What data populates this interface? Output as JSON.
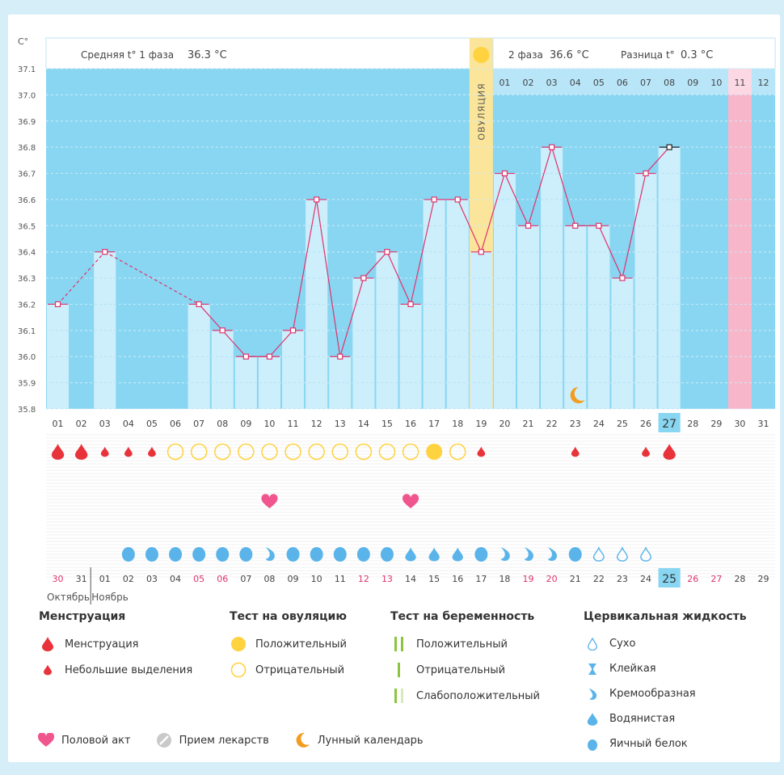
{
  "header": {
    "phase1_label": "Средняя t° 1 фаза",
    "phase1_value": "36.3 °C",
    "phase2_label": "2 фаза",
    "phase2_value": "36.6 °C",
    "diff_label": "Разница t°",
    "diff_value": "0.3 °C",
    "ovulation_label": "ОВУЛЯЦИЯ"
  },
  "colors": {
    "bg_blue": "#88d6f2",
    "bar_light": "#cdeefb",
    "line": "#e0336c",
    "ovulation": "#fbe59a",
    "pink": "#f7b6c9",
    "menstruation": "#e8333a",
    "test_pos": "#ffd23f",
    "fluid": "#5ab4ea",
    "heart": "#f1558e",
    "moon": "#f39c1e"
  },
  "chart_data": {
    "type": "line",
    "y_axis_label": "C°",
    "ylim": [
      35.8,
      37.1
    ],
    "y_ticks": [
      "37.1",
      "37.0",
      "36.9",
      "36.8",
      "36.7",
      "36.6",
      "36.5",
      "36.4",
      "36.3",
      "36.2",
      "36.1",
      "36.0",
      "35.9",
      "35.8"
    ],
    "cycle_days": [
      "01",
      "02",
      "03",
      "04",
      "05",
      "06",
      "07",
      "08",
      "09",
      "10",
      "11",
      "12",
      "13",
      "14",
      "15",
      "16",
      "17",
      "18",
      "19",
      "20",
      "21",
      "22",
      "23",
      "24",
      "25",
      "26",
      "27",
      "28",
      "29",
      "30",
      "31"
    ],
    "temperature": [
      36.2,
      null,
      36.4,
      null,
      null,
      null,
      36.2,
      36.1,
      36.0,
      36.0,
      36.1,
      36.6,
      36.0,
      36.3,
      36.4,
      36.2,
      36.6,
      36.6,
      36.4,
      36.7,
      36.5,
      36.8,
      36.5,
      36.5,
      36.3,
      36.7,
      36.8,
      null,
      null,
      null,
      null
    ],
    "ovulation_day": "19",
    "phase2_days": [
      "01",
      "02",
      "03",
      "04",
      "05",
      "06",
      "07",
      "08",
      "09",
      "10",
      "11",
      "12"
    ],
    "highlighted_cycle_day": "27",
    "pink_day": "30",
    "calendar_dates": [
      "30",
      "31",
      "01",
      "02",
      "03",
      "04",
      "05",
      "06",
      "07",
      "08",
      "09",
      "10",
      "11",
      "12",
      "13",
      "14",
      "15",
      "16",
      "17",
      "18",
      "19",
      "20",
      "21",
      "22",
      "23",
      "24",
      "25",
      "26",
      "27",
      "28",
      "29"
    ],
    "calendar_date_color": [
      "red",
      "black",
      "black",
      "black",
      "black",
      "black",
      "red",
      "red",
      "black",
      "black",
      "black",
      "black",
      "black",
      "red",
      "red",
      "black",
      "black",
      "black",
      "black",
      "black",
      "red",
      "red",
      "black",
      "black",
      "black",
      "black",
      "black",
      "red",
      "red",
      "black",
      "black"
    ],
    "highlighted_date": "25",
    "month_left": "Октябрь",
    "month_right": "Ноябрь",
    "menstruation_row": [
      "big",
      "big",
      "small",
      "small",
      "small",
      "neg",
      "neg",
      "neg",
      "neg",
      "neg",
      "neg",
      "neg",
      "neg",
      "neg",
      "neg",
      "neg",
      "pos",
      "neg",
      "small",
      "",
      "",
      "",
      "small",
      "",
      "",
      "small",
      "big",
      "",
      "",
      "",
      ""
    ],
    "intercourse_row": [
      "",
      "",
      "",
      "",
      "",
      "",
      "",
      "",
      "",
      "heart",
      "",
      "",
      "",
      "",
      "",
      "heart",
      "",
      "",
      "",
      "",
      "",
      "",
      "",
      "",
      "",
      "",
      "",
      "",
      "",
      "",
      ""
    ],
    "fluid_row": [
      "",
      "",
      "",
      "white",
      "white",
      "white",
      "white",
      "white",
      "white",
      "cream",
      "white",
      "white",
      "white",
      "white",
      "white",
      "water",
      "water",
      "water",
      "white",
      "cream",
      "cream",
      "cream",
      "white",
      "dry",
      "dry",
      "dry",
      "",
      "",
      "",
      "",
      ""
    ],
    "moon_day": "23"
  },
  "legend": {
    "menstruation": {
      "title": "Менструация",
      "items": [
        "Менструация",
        "Небольшие выделения"
      ]
    },
    "ovulation_test": {
      "title": "Тест на овуляцию",
      "items": [
        "Положительный",
        "Отрицательный"
      ]
    },
    "pregnancy_test": {
      "title": "Тест на беременность",
      "items": [
        "Положительный",
        "Отрицательный",
        "Слабоположительный"
      ]
    },
    "cervical": {
      "title": "Цервикальная жидкость",
      "items": [
        "Сухо",
        "Клейкая",
        "Кремообразная",
        "Водянистая",
        "Яичный белок"
      ]
    },
    "bottom": {
      "intercourse": "Половой акт",
      "medication": "Прием лекарств",
      "lunar": "Лунный календарь"
    }
  }
}
